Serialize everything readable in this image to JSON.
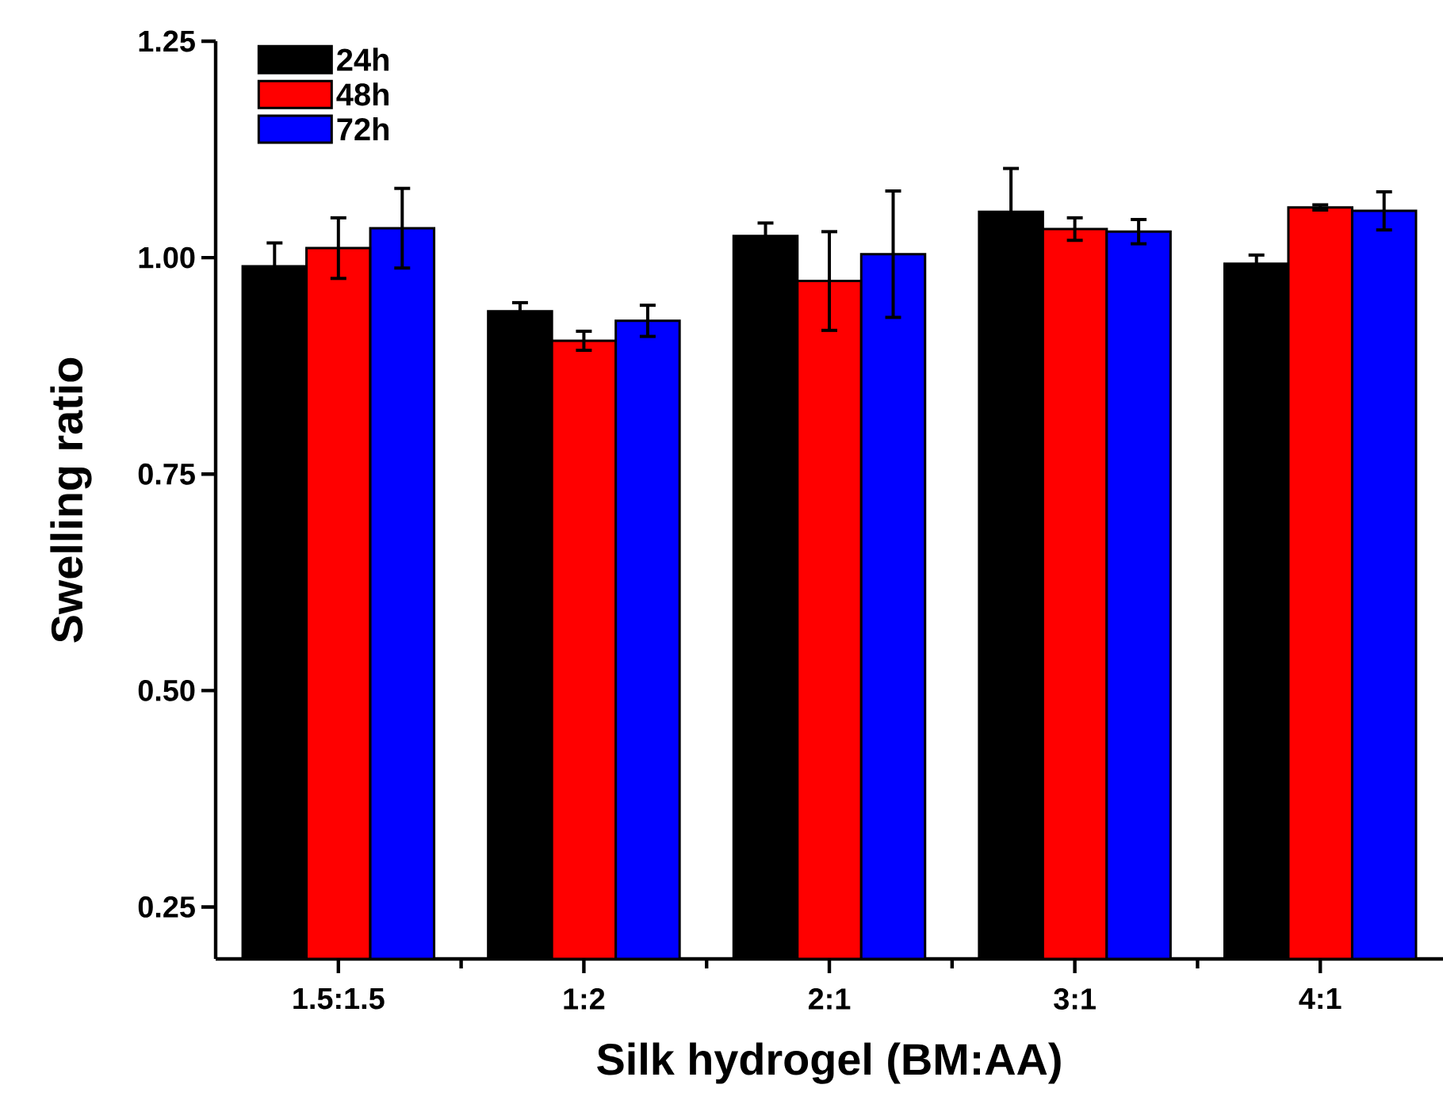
{
  "chart_data": {
    "type": "bar",
    "xlabel": "Silk hydrogel (BM:AA)",
    "ylabel": "Swelling ratio",
    "categories": [
      "1.5:1.5",
      "1:2",
      "2:1",
      "3:1",
      "4:1"
    ],
    "series": [
      {
        "name": "24h",
        "color": "#000000",
        "values": [
          0.99,
          0.938,
          1.025,
          1.053,
          0.993
        ],
        "errors": [
          0.027,
          0.01,
          0.015,
          0.05,
          0.01
        ]
      },
      {
        "name": "48h",
        "color": "#ff0000",
        "values": [
          1.011,
          0.904,
          0.973,
          1.033,
          1.058
        ],
        "errors": [
          0.035,
          0.011,
          0.057,
          0.013,
          0.003
        ]
      },
      {
        "name": "72h",
        "color": "#0000ff",
        "values": [
          1.034,
          0.927,
          1.004,
          1.03,
          1.054
        ],
        "errors": [
          0.046,
          0.018,
          0.073,
          0.014,
          0.022
        ]
      }
    ],
    "ylim": [
      0.19,
      1.25
    ],
    "yticks": [
      0.25,
      {
        "value": 0.5,
        "label": "0.50"
      },
      0.75,
      {
        "value": 1,
        "label": "1.00"
      },
      1.25
    ],
    "legend": "top left",
    "grid": false
  }
}
